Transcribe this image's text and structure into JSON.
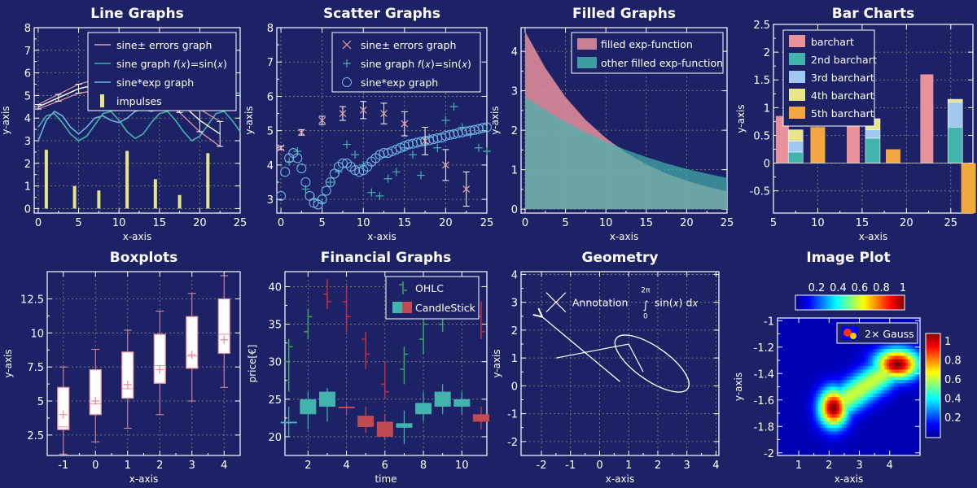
{
  "chart_data": [
    {
      "type": "line",
      "title": "Line Graphs",
      "xlabel": "x-axis",
      "ylabel": "y-axis",
      "xlim": [
        -0.5,
        25
      ],
      "ylim": [
        -0.2,
        8
      ],
      "xticks": [
        0,
        5,
        10,
        15,
        20,
        25
      ],
      "yticks": [
        0,
        1,
        2,
        3,
        4,
        5,
        6,
        7,
        8
      ],
      "legend": [
        "sine± errors graph",
        "sine graph 𝑓(𝑥)=sin(𝑥)",
        "sine*exp graph",
        "impulses"
      ],
      "series": [
        {
          "name": "sine± errors graph",
          "x": [
            0,
            2.5,
            5,
            7.5,
            10,
            12.5,
            15,
            17.5,
            20,
            22.5
          ],
          "y": [
            4.5,
            4.9,
            5.3,
            5.5,
            5.6,
            5.5,
            5.2,
            4.7,
            3.9,
            3.3
          ],
          "err": [
            0.1,
            0.15,
            0.2,
            0.25,
            0.3,
            0.35,
            0.4,
            0.45,
            0.5,
            0.55
          ]
        },
        {
          "name": "sine graph 𝑓(𝑥)=sin(𝑥)",
          "x": [
            0,
            1,
            2,
            3,
            4,
            5,
            6,
            7,
            8,
            9,
            10,
            11,
            12,
            13,
            14,
            15,
            16,
            17,
            18,
            19,
            20,
            21,
            22,
            23,
            24,
            25
          ],
          "y": [
            3.6,
            4.1,
            4.2,
            3.8,
            3.3,
            3.0,
            3.2,
            3.7,
            4.2,
            4.3,
            3.9,
            3.4,
            3.1,
            3.3,
            3.8,
            4.2,
            4.3,
            3.9,
            3.4,
            3.0,
            3.2,
            3.7,
            4.2,
            4.3,
            3.9,
            3.4
          ]
        },
        {
          "name": "sine*exp graph",
          "x": [
            0,
            1,
            2,
            3,
            4,
            5,
            6,
            7,
            8,
            9,
            10,
            11,
            12,
            13,
            14,
            15,
            16,
            17,
            18,
            19,
            20,
            21,
            22,
            23,
            24,
            25
          ],
          "y": [
            3.0,
            3.9,
            4.3,
            4.1,
            3.6,
            3.3,
            3.6,
            4.0,
            4.1,
            3.9,
            3.8,
            4.0,
            4.3,
            4.4,
            4.3,
            4.4,
            4.6,
            4.7,
            4.6,
            4.6,
            4.8,
            4.9,
            4.9,
            5.0,
            5.1,
            5.1
          ]
        },
        {
          "name": "impulses",
          "x": [
            1,
            4.5,
            7.5,
            11,
            14.5,
            17.5,
            21
          ],
          "y": [
            2.6,
            1.0,
            0.8,
            2.55,
            1.3,
            0.6,
            2.45
          ]
        }
      ]
    },
    {
      "type": "scatter",
      "title": "Scatter Graphs",
      "xlabel": "x-axis",
      "ylabel": "y-axis",
      "xlim": [
        -0.5,
        25
      ],
      "ylim": [
        2.6,
        8
      ],
      "xticks": [
        0,
        5,
        10,
        15,
        20,
        25
      ],
      "yticks": [
        3,
        4,
        5,
        6,
        7,
        8
      ],
      "legend": [
        "sine± errors graph",
        "sine graph 𝑓(𝑥)=sin(𝑥)",
        "sine*exp graph"
      ],
      "series": [
        {
          "name": "sine± errors graph",
          "x": [
            0,
            2.5,
            5,
            7.5,
            10,
            12.5,
            15,
            17.5,
            20,
            22.5
          ],
          "y": [
            4.5,
            4.95,
            5.3,
            5.5,
            5.6,
            5.5,
            5.2,
            4.7,
            4.0,
            3.3
          ],
          "err": [
            0.05,
            0.08,
            0.12,
            0.2,
            0.25,
            0.3,
            0.35,
            0.4,
            0.45,
            0.5
          ]
        },
        {
          "name": "sine graph 𝑓(𝑥)=sin(𝑥)",
          "x": [
            1,
            2,
            3,
            4,
            5,
            6,
            7,
            8,
            9,
            10,
            11,
            12,
            13,
            14,
            15,
            16,
            17,
            18,
            19,
            20,
            21,
            22,
            23,
            24,
            25
          ],
          "y": [
            4.1,
            4.4,
            3.3,
            3.0,
            2.9,
            3.5,
            3.8,
            4.6,
            4.3,
            4.0,
            3.2,
            3.1,
            3.6,
            3.8,
            4.5,
            4.3,
            3.7,
            4.8,
            4.5,
            5.3,
            5.7,
            5.1,
            4.9,
            4.5,
            4.4
          ]
        },
        {
          "name": "sine*exp graph",
          "x": [
            0,
            0.5,
            1,
            1.5,
            2,
            2.5,
            3,
            3.5,
            4,
            4.5,
            5,
            5.5,
            6,
            6.5,
            7,
            7.5,
            8,
            8.5,
            9,
            9.5,
            10,
            10.5,
            11,
            11.5,
            12,
            12.5,
            13,
            13.5,
            14,
            14.5,
            15,
            15.5,
            16,
            16.5,
            17,
            17.5,
            18,
            18.5,
            19,
            19.5,
            20,
            20.5,
            21,
            21.5,
            22,
            22.5,
            23,
            23.5,
            24,
            24.5,
            25
          ],
          "y": [
            3.1,
            3.8,
            4.2,
            4.35,
            4.2,
            3.9,
            3.5,
            3.1,
            2.9,
            2.85,
            3.0,
            3.25,
            3.5,
            3.75,
            3.95,
            4.05,
            4.05,
            3.95,
            3.85,
            3.8,
            3.85,
            3.95,
            4.1,
            4.2,
            4.3,
            4.35,
            4.35,
            4.4,
            4.45,
            4.5,
            4.55,
            4.6,
            4.62,
            4.65,
            4.68,
            4.7,
            4.72,
            4.75,
            4.78,
            4.8,
            4.85,
            4.88,
            4.9,
            4.93,
            4.95,
            4.98,
            5.0,
            5.02,
            5.05,
            5.08,
            5.1
          ]
        }
      ]
    },
    {
      "type": "area",
      "title": "Filled Graphs",
      "xlabel": "x-axis",
      "ylabel": "y-axis",
      "xlim": [
        -0.5,
        25
      ],
      "ylim": [
        -0.1,
        4.6
      ],
      "xticks": [
        0,
        5,
        10,
        15,
        20,
        25
      ],
      "yticks": [
        0,
        1,
        2,
        3,
        4
      ],
      "legend": [
        "filled exp-function",
        "other filled exp-function"
      ],
      "series": [
        {
          "name": "filled exp-function",
          "x": [
            0,
            2.5,
            5,
            7.5,
            10,
            12.5,
            15,
            17.5,
            20,
            22.5,
            25
          ],
          "y": [
            4.5,
            3.58,
            2.84,
            2.26,
            1.8,
            1.43,
            1.13,
            0.9,
            0.72,
            0.57,
            0.45
          ]
        },
        {
          "name": "other filled exp-function",
          "x": [
            0,
            2.5,
            5,
            7.5,
            10,
            12.5,
            15,
            17.5,
            20,
            22.5,
            25
          ],
          "y": [
            2.85,
            2.51,
            2.21,
            1.94,
            1.71,
            1.5,
            1.32,
            1.16,
            1.02,
            0.9,
            0.79
          ]
        }
      ]
    },
    {
      "type": "bar",
      "title": "Bar Charts",
      "xlabel": "x-axis",
      "ylabel": "y-axis",
      "xlim": [
        5,
        27.5
      ],
      "ylim": [
        -0.9,
        2.5
      ],
      "xticks": [
        5,
        10,
        15,
        20,
        25
      ],
      "yticks": [
        -0.5,
        0,
        0.5,
        1,
        1.5,
        2,
        2.5
      ],
      "legend": [
        "barchart",
        "2nd barchart",
        "3rd barchart",
        "4th barchart",
        "5th barchart"
      ],
      "categories": [
        "5",
        "15",
        "25"
      ],
      "series": [
        {
          "name": "barchart",
          "values": [
            0.85,
            0.7,
            1.6
          ]
        },
        {
          "name": "2nd barchart",
          "values": [
            0.2,
            0.45,
            0.65
          ]
        },
        {
          "name": "3rd barchart",
          "values": [
            0.2,
            0.15,
            0.45
          ]
        },
        {
          "name": "4th barchart",
          "values": [
            0.2,
            0.2,
            0.05
          ]
        },
        {
          "name": "5th barchart",
          "values": [
            0.65,
            0.25,
            -0.9
          ]
        }
      ]
    },
    {
      "type": "box",
      "title": "Boxplots",
      "xlabel": "x-axis",
      "ylabel": "y-axis",
      "xlim": [
        -1.5,
        4.5
      ],
      "ylim": [
        1,
        14.5
      ],
      "xticks": [
        -1,
        0,
        1,
        2,
        3,
        4
      ],
      "yticks": [
        2.5,
        5,
        7.5,
        10,
        12.5
      ],
      "boxes": [
        {
          "x": -1,
          "min": 1.1,
          "q1": 2.9,
          "median": 3.1,
          "q3": 6.0,
          "max": 7.5,
          "mean": 4.0
        },
        {
          "x": 0,
          "min": 2.0,
          "q1": 4.0,
          "median": 4.8,
          "q3": 7.3,
          "max": 8.8,
          "mean": 5.0
        },
        {
          "x": 1,
          "min": 3.0,
          "q1": 5.2,
          "median": 5.9,
          "q3": 8.6,
          "max": 10.2,
          "mean": 6.2
        },
        {
          "x": 2,
          "min": 4.0,
          "q1": 6.3,
          "median": 7.6,
          "q3": 9.9,
          "max": 11.6,
          "mean": 7.3
        },
        {
          "x": 3,
          "min": 5.0,
          "q1": 7.4,
          "median": 8.3,
          "q3": 11.2,
          "max": 12.9,
          "mean": 8.4
        },
        {
          "x": 4,
          "min": 6.0,
          "q1": 8.5,
          "median": 9.9,
          "q3": 12.5,
          "max": 14.2,
          "mean": 9.5
        }
      ]
    },
    {
      "type": "ohlc",
      "title": "Financial Graphs",
      "xlabel": "time",
      "ylabel": "price[€]",
      "xlim": [
        0.8,
        11.3
      ],
      "ylim": [
        17.5,
        42
      ],
      "xticks": [
        2,
        4,
        6,
        8,
        10
      ],
      "yticks": [
        20,
        25,
        30,
        35,
        40
      ],
      "legend": [
        "OHLC",
        "CandleStick"
      ],
      "ohlc": [
        {
          "t": 1,
          "o": 30,
          "h": 33,
          "l": 26,
          "c": 32
        },
        {
          "t": 2,
          "o": 34,
          "h": 37,
          "l": 33,
          "c": 36
        },
        {
          "t": 3,
          "o": 39,
          "h": 41,
          "l": 37,
          "c": 38
        },
        {
          "t": 4,
          "o": 38,
          "h": 40,
          "l": 34,
          "c": 36
        },
        {
          "t": 5,
          "o": 33,
          "h": 34,
          "l": 29,
          "c": 31
        },
        {
          "t": 6,
          "o": 27,
          "h": 30,
          "l": 25,
          "c": 26
        },
        {
          "t": 7,
          "o": 29,
          "h": 32,
          "l": 27,
          "c": 31
        },
        {
          "t": 8,
          "o": 33,
          "h": 36,
          "l": 31,
          "c": 35
        },
        {
          "t": 9,
          "o": 35,
          "h": 39,
          "l": 34,
          "c": 38
        },
        {
          "t": 10,
          "o": 38,
          "h": 41,
          "l": 37,
          "c": 40
        },
        {
          "t": 11,
          "o": 36,
          "h": 38,
          "l": 33,
          "c": 34
        }
      ],
      "candles": [
        {
          "t": 1,
          "o": 22,
          "h": 24,
          "l": 20,
          "c": 22
        },
        {
          "t": 2,
          "o": 23,
          "h": 26,
          "l": 21,
          "c": 25
        },
        {
          "t": 3,
          "o": 24,
          "h": 26.5,
          "l": 22,
          "c": 26
        },
        {
          "t": 4,
          "o": 24,
          "h": 24.5,
          "l": 23,
          "c": 23.8
        },
        {
          "t": 5,
          "o": 22.8,
          "h": 24,
          "l": 20.5,
          "c": 21.3
        },
        {
          "t": 6,
          "o": 22,
          "h": 23,
          "l": 19.5,
          "c": 20
        },
        {
          "t": 7,
          "o": 21.2,
          "h": 23.5,
          "l": 19,
          "c": 21.8
        },
        {
          "t": 8,
          "o": 23,
          "h": 26,
          "l": 22,
          "c": 24.5
        },
        {
          "t": 9,
          "o": 24,
          "h": 27,
          "l": 23,
          "c": 26
        },
        {
          "t": 10,
          "o": 24,
          "h": 26,
          "l": 23,
          "c": 25
        },
        {
          "t": 11,
          "o": 23,
          "h": 24,
          "l": 21,
          "c": 22
        }
      ]
    },
    {
      "type": "geometry",
      "title": "Geometry",
      "xlabel": "x-axis",
      "ylabel": "y-axis",
      "xlim": [
        -2.7,
        4.1
      ],
      "ylim": [
        -2.5,
        4.1
      ],
      "xticks": [
        -2,
        -1,
        0,
        1,
        2,
        3,
        4
      ],
      "yticks": [
        -2,
        -1,
        0,
        1,
        2,
        3,
        4
      ],
      "annotation": {
        "text": "Annotation",
        "integral_upper": "2π",
        "integral_lower": "0",
        "integrand": "sin(𝑥) d𝑥",
        "cross": [
          -1.5,
          3.0
        ]
      },
      "arrow": {
        "from": [
          0.7,
          0.15
        ],
        "to": [
          -2.0,
          2.5
        ]
      },
      "polyline": {
        "x": [
          -1.5,
          1.0,
          1.5
        ],
        "y": [
          1.0,
          1.5,
          0.5
        ]
      },
      "ellipse": {
        "cx": 1.8,
        "cy": 0.8,
        "rx": 1.5,
        "ry": 0.6,
        "angle": -35
      }
    },
    {
      "type": "heatmap",
      "title": "Image Plot",
      "xlabel": "x-axis",
      "ylabel": "y-axis",
      "xlim": [
        0.3,
        5.0
      ],
      "ylim": [
        -2.02,
        -0.98
      ],
      "xticks": [
        1,
        2,
        3,
        4
      ],
      "yticks": [
        -2,
        -1.8,
        -1.6,
        -1.4,
        -1.2,
        -1
      ],
      "legend": [
        "2× Gauss"
      ],
      "colorbar_top_ticks": [
        "0.2",
        "0.4",
        "0.6",
        "0.8",
        "1"
      ],
      "colorbar_right_ticks": [
        "0.2",
        "0.4",
        "0.6",
        "0.8",
        "1"
      ],
      "gaussians": [
        {
          "cx": 2.15,
          "cy": -1.66,
          "sx": 0.33,
          "sy": 0.1
        },
        {
          "cx": 4.25,
          "cy": -1.33,
          "sx": 0.5,
          "sy": 0.08
        }
      ]
    }
  ]
}
